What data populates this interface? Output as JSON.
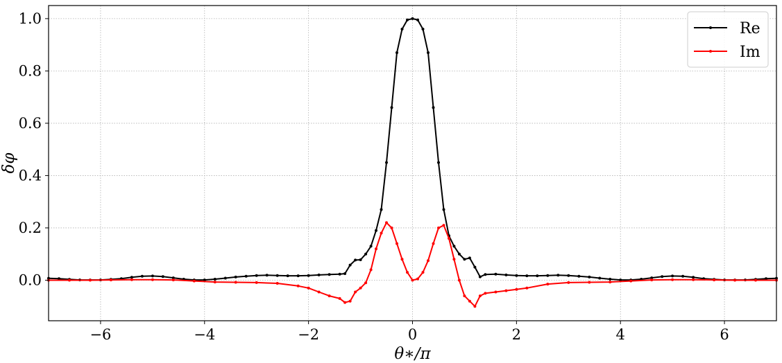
{
  "chart_data": {
    "type": "line",
    "xlabel": "θ∗/π",
    "ylabel": "δφ",
    "xlim": [
      -7,
      7
    ],
    "ylim": [
      -0.155,
      1.05
    ],
    "xticks": [
      -6,
      -4,
      -2,
      0,
      2,
      4,
      6
    ],
    "xtick_labels": [
      "−6",
      "−4",
      "−2",
      "0",
      "2",
      "4",
      "6"
    ],
    "yticks": [
      0.0,
      0.2,
      0.4,
      0.6,
      0.8,
      1.0
    ],
    "ytick_labels": [
      "0.0",
      "0.2",
      "0.4",
      "0.6",
      "0.8",
      "1.0"
    ],
    "grid": true,
    "legend_position": "top-right",
    "series": [
      {
        "name": "Re",
        "color": "#000000",
        "x": [
          -7.0,
          -6.8,
          -6.6,
          -6.4,
          -6.2,
          -6.0,
          -5.8,
          -5.6,
          -5.4,
          -5.2,
          -5.0,
          -4.8,
          -4.6,
          -4.4,
          -4.2,
          -4.0,
          -3.8,
          -3.6,
          -3.4,
          -3.2,
          -3.0,
          -2.8,
          -2.6,
          -2.4,
          -2.2,
          -2.0,
          -1.8,
          -1.6,
          -1.4,
          -1.3,
          -1.2,
          -1.1,
          -1.0,
          -0.9,
          -0.8,
          -0.7,
          -0.6,
          -0.5,
          -0.4,
          -0.3,
          -0.2,
          -0.1,
          0.0,
          0.1,
          0.2,
          0.3,
          0.4,
          0.5,
          0.6,
          0.7,
          0.8,
          0.9,
          1.0,
          1.1,
          1.2,
          1.3,
          1.4,
          1.6,
          1.8,
          2.0,
          2.2,
          2.4,
          2.6,
          2.8,
          3.0,
          3.2,
          3.4,
          3.6,
          3.8,
          4.0,
          4.2,
          4.4,
          4.6,
          4.8,
          5.0,
          5.2,
          5.4,
          5.6,
          5.8,
          6.0,
          6.2,
          6.4,
          6.6,
          6.8,
          7.0
        ],
        "values": [
          0.007,
          0.006,
          0.003,
          0.001,
          0.001,
          0.001,
          0.003,
          0.006,
          0.011,
          0.015,
          0.016,
          0.014,
          0.009,
          0.004,
          0.001,
          0.001,
          0.004,
          0.008,
          0.012,
          0.015,
          0.018,
          0.019,
          0.018,
          0.017,
          0.017,
          0.018,
          0.02,
          0.022,
          0.023,
          0.025,
          0.058,
          0.077,
          0.078,
          0.1,
          0.13,
          0.19,
          0.27,
          0.45,
          0.66,
          0.87,
          0.96,
          0.995,
          1.0,
          0.995,
          0.96,
          0.87,
          0.66,
          0.45,
          0.27,
          0.17,
          0.13,
          0.1,
          0.08,
          0.085,
          0.05,
          0.013,
          0.022,
          0.023,
          0.02,
          0.018,
          0.017,
          0.017,
          0.018,
          0.019,
          0.018,
          0.015,
          0.012,
          0.008,
          0.004,
          0.001,
          0.001,
          0.004,
          0.009,
          0.014,
          0.016,
          0.015,
          0.011,
          0.006,
          0.003,
          0.001,
          0.001,
          0.001,
          0.003,
          0.006,
          0.007
        ]
      },
      {
        "name": "Im",
        "color": "#ff0000",
        "x": [
          -7.0,
          -6.6,
          -6.2,
          -5.8,
          -5.4,
          -5.0,
          -4.6,
          -4.2,
          -3.8,
          -3.4,
          -3.0,
          -2.6,
          -2.2,
          -2.0,
          -1.8,
          -1.6,
          -1.4,
          -1.3,
          -1.2,
          -1.1,
          -1.0,
          -0.9,
          -0.8,
          -0.7,
          -0.6,
          -0.5,
          -0.4,
          -0.3,
          -0.2,
          -0.1,
          0.0,
          0.1,
          0.2,
          0.3,
          0.4,
          0.5,
          0.6,
          0.7,
          0.8,
          0.9,
          1.0,
          1.1,
          1.2,
          1.3,
          1.4,
          1.6,
          1.8,
          2.0,
          2.2,
          2.6,
          3.0,
          3.4,
          3.8,
          4.2,
          4.6,
          5.0,
          5.4,
          5.8,
          6.2,
          6.6,
          7.0
        ],
        "values": [
          0.0,
          0.0,
          0.0,
          0.001,
          0.002,
          0.002,
          0.001,
          -0.003,
          -0.007,
          -0.008,
          -0.009,
          -0.012,
          -0.022,
          -0.03,
          -0.045,
          -0.06,
          -0.07,
          -0.085,
          -0.08,
          -0.045,
          -0.03,
          -0.01,
          0.04,
          0.12,
          0.18,
          0.22,
          0.2,
          0.14,
          0.08,
          0.03,
          0.0,
          0.005,
          0.03,
          0.075,
          0.14,
          0.2,
          0.21,
          0.16,
          0.08,
          0.0,
          -0.06,
          -0.08,
          -0.1,
          -0.06,
          -0.05,
          -0.045,
          -0.04,
          -0.035,
          -0.03,
          -0.015,
          -0.009,
          -0.008,
          -0.007,
          -0.003,
          0.001,
          0.002,
          0.002,
          0.001,
          0.0,
          0.0,
          0.0
        ]
      }
    ]
  }
}
